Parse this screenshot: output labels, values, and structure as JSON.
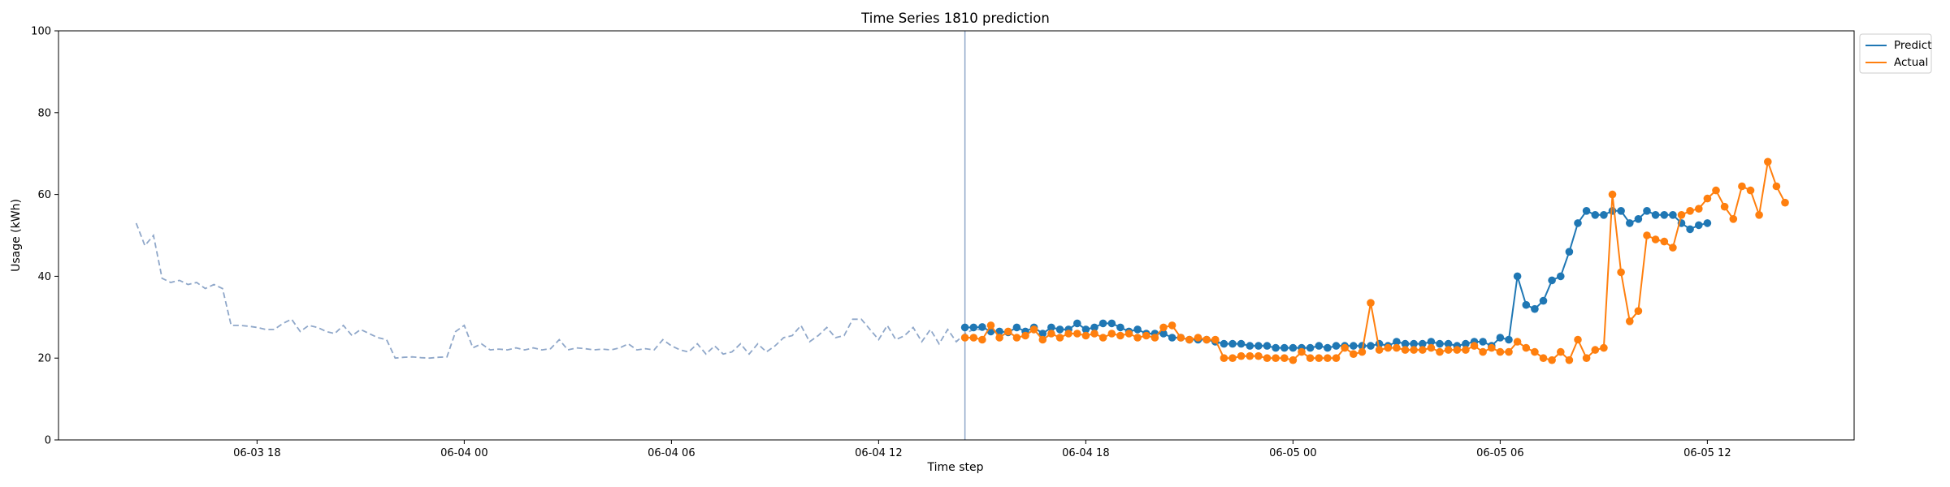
{
  "chart_data": {
    "type": "line",
    "title": "Time Series 1810 prediction",
    "xlabel": "Time step",
    "ylabel": "Usage (kWh)",
    "ylim": [
      0,
      100
    ],
    "y_ticks": [
      0,
      20,
      40,
      60,
      80,
      100
    ],
    "x_ticks": [
      {
        "t": "2023-06-03T18:00",
        "label": "06-03 18"
      },
      {
        "t": "2023-06-04T00:00",
        "label": "06-04 00"
      },
      {
        "t": "2023-06-04T06:00",
        "label": "06-04 06"
      },
      {
        "t": "2023-06-04T12:00",
        "label": "06-04 12"
      },
      {
        "t": "2023-06-04T18:00",
        "label": "06-04 18"
      },
      {
        "t": "2023-06-05T00:00",
        "label": "06-05 00"
      },
      {
        "t": "2023-06-05T06:00",
        "label": "06-05 06"
      },
      {
        "t": "2023-06-05T12:00",
        "label": "06-05 12"
      }
    ],
    "xlim": [
      "2023-06-03T12:15",
      "2023-06-05T16:15"
    ],
    "grid": false,
    "legend_position": "outside-top-right",
    "forecast_start": "2023-06-04T14:30",
    "history": {
      "start": "2023-06-03T14:30",
      "step_minutes": 15,
      "color": "#8fa7c9",
      "values": [
        53.0,
        47.5,
        50.0,
        39.5,
        38.5,
        39.0,
        38.0,
        38.5,
        37.0,
        38.0,
        37.0,
        28.0,
        28.0,
        27.8,
        27.5,
        27.0,
        27.0,
        28.5,
        29.5,
        26.5,
        28.0,
        27.5,
        26.5,
        26.0,
        28.0,
        25.5,
        27.0,
        26.0,
        25.0,
        24.5,
        20.0,
        20.2,
        20.3,
        20.1,
        20.0,
        20.2,
        20.3,
        26.5,
        28.0,
        22.5,
        23.5,
        22.0,
        22.2,
        22.0,
        22.5,
        22.0,
        22.5,
        22.0,
        22.3,
        24.5,
        22.0,
        22.5,
        22.3,
        22.0,
        22.2,
        22.0,
        22.5,
        23.5,
        22.0,
        22.3,
        22.0,
        24.5,
        23.0,
        22.0,
        21.5,
        23.5,
        21.0,
        23.0,
        21.0,
        21.5,
        23.5,
        21.0,
        23.5,
        21.5,
        23.0,
        25.0,
        25.5,
        28.0,
        24.0,
        25.5,
        27.5,
        25.0,
        25.5,
        29.5,
        29.5,
        27.0,
        24.5,
        28.0,
        24.5,
        25.5,
        27.5,
        24.0,
        27.0,
        23.5,
        27.0,
        24.0,
        26.0,
        27.0,
        27.0
      ]
    },
    "series": [
      {
        "name": "Predict",
        "color": "#1f77b4",
        "start": "2023-06-04T14:30",
        "step_minutes": 15,
        "values": [
          27.5,
          27.5,
          27.6,
          26.5,
          26.5,
          26.3,
          27.5,
          26.5,
          27.5,
          26.0,
          27.5,
          27.0,
          27.0,
          28.5,
          27.0,
          27.5,
          28.5,
          28.5,
          27.5,
          26.5,
          27.0,
          26.0,
          26.0,
          26.0,
          25.0,
          25.0,
          24.5,
          24.5,
          24.5,
          24.0,
          23.5,
          23.5,
          23.5,
          23.0,
          23.0,
          23.0,
          22.5,
          22.5,
          22.5,
          22.5,
          22.5,
          23.0,
          22.5,
          23.0,
          23.0,
          23.0,
          23.0,
          23.0,
          23.5,
          23.0,
          24.0,
          23.5,
          23.5,
          23.5,
          24.0,
          23.5,
          23.5,
          23.0,
          23.5,
          24.0,
          24.0,
          23.0,
          25.0,
          24.5,
          40.0,
          33.0,
          32.0,
          34.0,
          39.0,
          40.0,
          46.0,
          53.0,
          56.0,
          55.0,
          55.0,
          56.0,
          56.0,
          53.0,
          54.0,
          56.0,
          55.0,
          55.0,
          55.0,
          53.0,
          51.5,
          52.5,
          53.0
        ]
      },
      {
        "name": "Actual",
        "color": "#ff7f0e",
        "start": "2023-06-04T14:30",
        "step_minutes": 15,
        "values": [
          25.0,
          25.0,
          24.5,
          28.0,
          25.0,
          26.5,
          25.0,
          25.5,
          27.0,
          24.5,
          26.0,
          25.0,
          26.0,
          26.0,
          25.5,
          26.0,
          25.0,
          26.0,
          25.5,
          26.0,
          25.0,
          25.5,
          25.0,
          27.5,
          28.0,
          25.0,
          24.5,
          25.0,
          24.5,
          24.5,
          20.0,
          20.0,
          20.5,
          20.5,
          20.5,
          20.0,
          20.0,
          20.0,
          19.5,
          21.5,
          20.0,
          20.0,
          20.0,
          20.0,
          22.5,
          21.0,
          21.5,
          33.5,
          22.0,
          22.5,
          22.5,
          22.0,
          22.0,
          22.0,
          22.5,
          21.5,
          22.0,
          22.0,
          22.0,
          23.0,
          21.5,
          22.5,
          21.5,
          21.5,
          24.0,
          22.5,
          21.5,
          20.0,
          19.5,
          21.5,
          19.5,
          24.5,
          20.0,
          22.0,
          22.5,
          60.0,
          41.0,
          29.0,
          31.5,
          50.0,
          49.0,
          48.5,
          47.0,
          55.0,
          56.0,
          56.5,
          59.0,
          61.0,
          57.0,
          54.0,
          62.0,
          61.0,
          55.0,
          68.0,
          62.0,
          58.0
        ]
      }
    ]
  }
}
